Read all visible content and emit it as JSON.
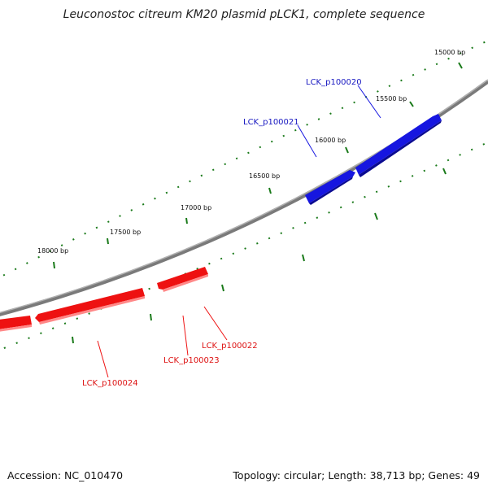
{
  "title": "Leuconostoc citreum KM20 plasmid pLCK1, complete sequence",
  "accession": "Accession: NC_010470",
  "topology": "Topology: circular; Length: 38,713 bp; Genes: 49",
  "colors": {
    "backbone": "#888888",
    "tick": "#1a7a1a",
    "forward_gene": "#1616e0",
    "reverse_gene": "#ee1111"
  },
  "ticks": [
    "15000 bp",
    "15500 bp",
    "16000 bp",
    "16500 bp",
    "17000 bp",
    "17500 bp",
    "18000 bp"
  ],
  "genes": [
    {
      "label": "LCK_p100020",
      "strand": "forward"
    },
    {
      "label": "LCK_p100021",
      "strand": "forward"
    },
    {
      "label": "LCK_p100022",
      "strand": "reverse"
    },
    {
      "label": "LCK_p100023",
      "strand": "reverse"
    },
    {
      "label": "LCK_p100024",
      "strand": "reverse"
    }
  ]
}
